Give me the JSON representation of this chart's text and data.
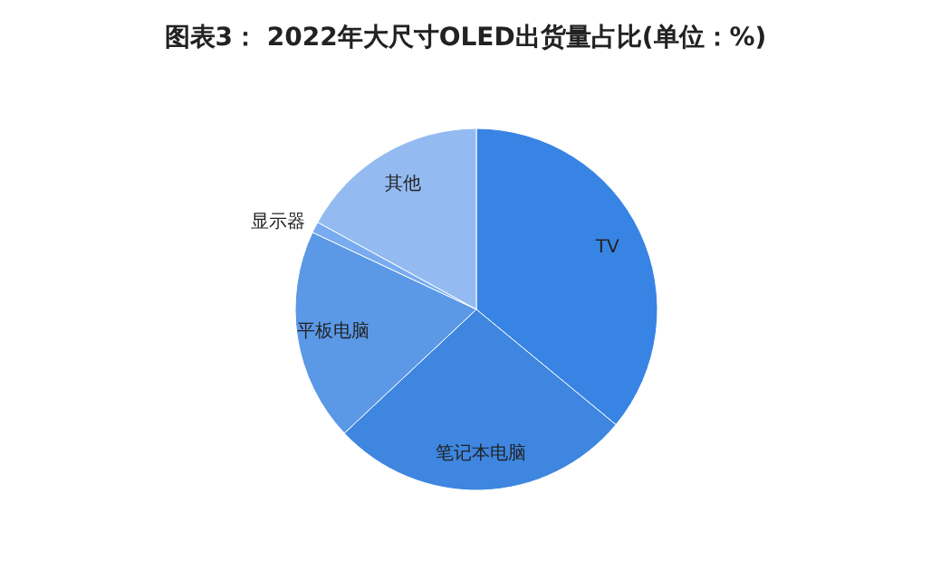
{
  "chart_data": {
    "type": "pie",
    "title": "图表3： 2022年大尺寸OLED出货量占比(单位：%)",
    "categories": [
      "TV",
      "笔记本电脑",
      "平板电脑",
      "显示器",
      "其他"
    ],
    "values": [
      36,
      27,
      19,
      1,
      17
    ],
    "colors": [
      "#3884e4",
      "#3e86e0",
      "#5b98e6",
      "#78abef",
      "#93bbf2"
    ],
    "legend": false
  }
}
